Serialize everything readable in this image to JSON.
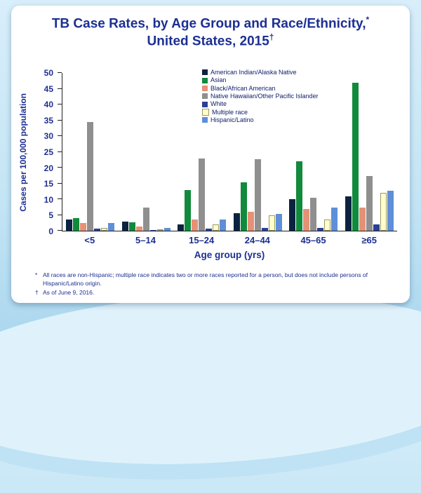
{
  "slide": {
    "title_line1_text": "TB Case Rates, by Age Group and Race/Ethnicity,",
    "title_line1_sup": "*",
    "title_line2_text": "United States, 2015",
    "title_line2_sup": "†",
    "footnote1_marker": "*",
    "footnote1": "All races are non-Hispanic; multiple race indicates two or more races reported for a person, but does not include persons of Hispanic/Latino origin.",
    "footnote2_marker": "†",
    "footnote2": "As of June 9, 2016."
  },
  "chart_data": {
    "type": "bar",
    "title": "TB Case Rates, by Age Group and Race/Ethnicity, United States, 2015",
    "xlabel": "Age group (yrs)",
    "ylabel": "Cases per 100,000 population",
    "ylim": [
      0,
      50
    ],
    "ytick_step": 5,
    "grid": false,
    "legend_position": "top-inside",
    "categories": [
      "<5",
      "5–14",
      "15–24",
      "24–44",
      "45–65",
      "≥65"
    ],
    "series": [
      {
        "name": "American Indian/Alaska Native",
        "color": "#0c2340",
        "values": [
          3.5,
          3.0,
          2.0,
          5.5,
          10.0,
          11.0
        ]
      },
      {
        "name": "Asian",
        "color": "#128a3c",
        "values": [
          4.0,
          2.6,
          13.0,
          15.3,
          22.0,
          47.0
        ]
      },
      {
        "name": "Black/African American",
        "color": "#e69177",
        "values": [
          2.4,
          1.4,
          3.6,
          6.1,
          7.0,
          7.4
        ]
      },
      {
        "name": "Native Hawaiian/Other Pacific Islander",
        "color": "#8f8f8f",
        "values": [
          34.5,
          7.4,
          23.0,
          22.6,
          10.4,
          17.4
        ]
      },
      {
        "name": "White",
        "color": "#2b3f96",
        "values": [
          0.6,
          0.3,
          0.6,
          1.0,
          1.0,
          2.0
        ]
      },
      {
        "name": "Multiple race",
        "color": "#ffffcb",
        "border_color": "#9a9a66",
        "values": [
          1.0,
          0.4,
          1.9,
          5.0,
          3.6,
          11.9
        ]
      },
      {
        "name": "Hispanic/Latino",
        "color": "#5e8fd8",
        "values": [
          2.4,
          1.0,
          3.5,
          5.4,
          7.4,
          12.6
        ]
      }
    ]
  }
}
